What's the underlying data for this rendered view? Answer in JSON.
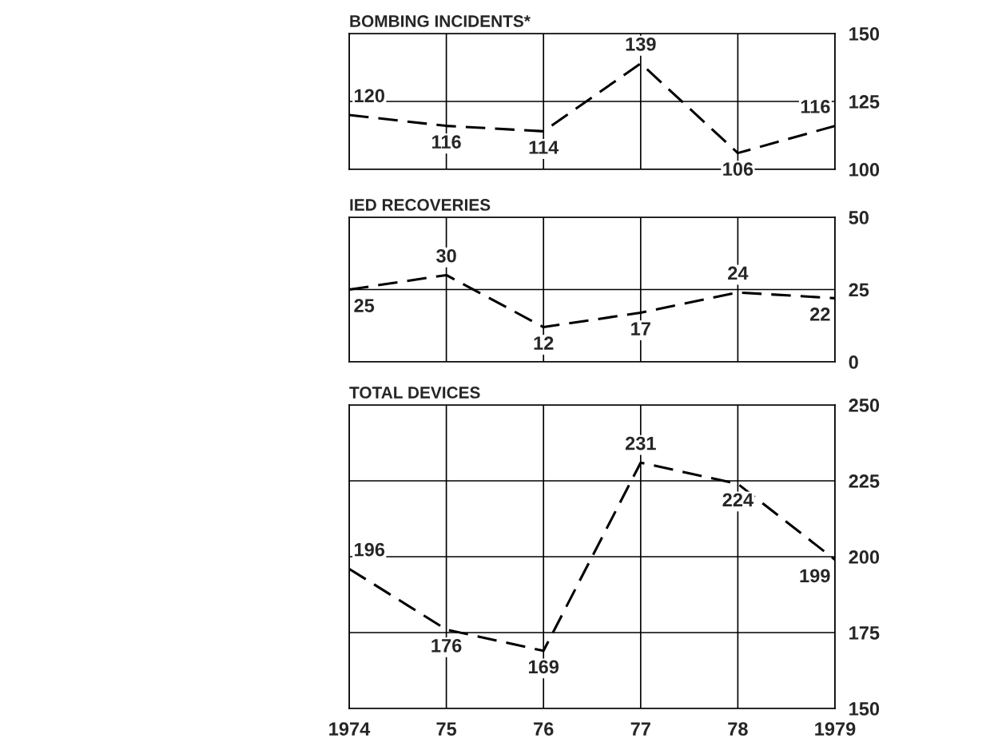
{
  "chart_data": [
    {
      "type": "line",
      "title": "BOMBING INCIDENTS*",
      "x": [
        1974,
        1975,
        1976,
        1977,
        1978,
        1979
      ],
      "series": [
        {
          "color": "#000000",
          "values": [
            120,
            116,
            114,
            139,
            106,
            116
          ]
        }
      ],
      "xlim": [
        1974,
        1979
      ],
      "xticks": [
        1974,
        1975,
        1976,
        1977,
        1978,
        1979
      ],
      "ylim": [
        100,
        150
      ],
      "yticks": [
        100,
        125,
        150
      ],
      "grid": true,
      "tick_labels": "y",
      "line_style": "dashed",
      "data_labels": true
    },
    {
      "type": "line",
      "title": "IED RECOVERIES",
      "x": [
        1974,
        1975,
        1976,
        1977,
        1978,
        1979
      ],
      "series": [
        {
          "color": "#000000",
          "values": [
            25,
            30,
            12,
            17,
            24,
            22
          ]
        }
      ],
      "xlim": [
        1974,
        1979
      ],
      "xticks": [
        1974,
        1975,
        1976,
        1977,
        1978,
        1979
      ],
      "ylim": [
        0,
        50
      ],
      "yticks": [
        0,
        25,
        50
      ],
      "grid": true,
      "tick_labels": "y",
      "line_style": "dashed",
      "data_labels": true
    },
    {
      "type": "line",
      "title": "TOTAL DEVICES",
      "x": [
        1974,
        1975,
        1976,
        1977,
        1978,
        1979
      ],
      "series": [
        {
          "color": "#000000",
          "values": [
            196,
            176,
            169,
            231,
            224,
            199
          ]
        }
      ],
      "xlim": [
        1974,
        1979
      ],
      "xticks": [
        1974,
        {
          "value": 1975,
          "label": "75"
        },
        {
          "value": 1976,
          "label": "76"
        },
        {
          "value": 1977,
          "label": "77"
        },
        {
          "value": 1978,
          "label": "78"
        },
        1979
      ],
      "ylim": [
        150,
        250
      ],
      "yticks": [
        150,
        175,
        200,
        225,
        250
      ],
      "grid": true,
      "line_style": "dashed",
      "data_labels": true
    }
  ]
}
